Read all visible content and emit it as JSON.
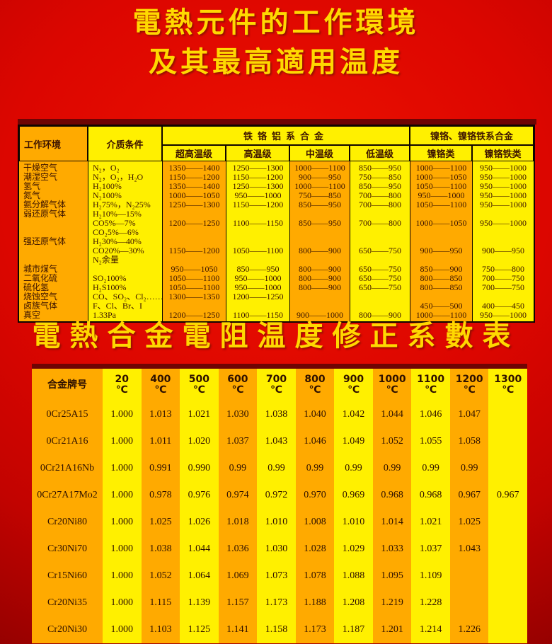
{
  "title": {
    "line1": "電熱元件的工作環境",
    "line2": "及其最高適用温度"
  },
  "title2": "電熱合金電阻温度修正系數表",
  "colors": {
    "background_red": "#d40600",
    "background_dark_red": "#7a0000",
    "stripe_orange": "#ffaa00",
    "stripe_yellow": "#fff000",
    "title_gold": "#ffd800",
    "divider_maroon": "#6f0404",
    "table_text": "#3a1200"
  },
  "table1": {
    "header": {
      "col_env": "工作环境",
      "col_medium": "介质条件",
      "group_fecral": "铁铬铝系合金",
      "group_nicr": "镍铬、镍铬铁系合金",
      "sub": [
        "超高温级",
        "高温级",
        "中温级",
        "低温级",
        "镍铬类",
        "镍铬铁类"
      ]
    },
    "lines": [
      [
        "干燥空气",
        "N₂，O₂",
        "1350——1400",
        "1250——1300",
        "1000——1100",
        "850——950",
        "1000——1100",
        "950——1000"
      ],
      [
        "潮湿空气",
        "N₂，O₂，H₂O",
        "1150——1200",
        "1150——1200",
        "900——950",
        "750——850",
        "1000——1050",
        "950——1000"
      ],
      [
        "氢气",
        "H₂100%",
        "1350——1400",
        "1250——1300",
        "1000——1100",
        "850——950",
        "1050——1100",
        "950——1000"
      ],
      [
        "氮气",
        "N₂100%",
        "1000——1050",
        "950——1000",
        "750——850",
        "700——800",
        "950——1000",
        "950——1000"
      ],
      [
        "氨分解气体",
        "H₂75%，N₂25%",
        "1250——1300",
        "1150——1200",
        "850——950",
        "700——800",
        "1050——1100",
        "950——1000"
      ],
      [
        "弱还原气体",
        "H₂10%—15%",
        "",
        "",
        "",
        "",
        "",
        ""
      ],
      [
        "",
        "CO5%—7%",
        "1200——1250",
        "1100——1150",
        "850——950",
        "700——800",
        "1000——1050",
        "950——1000"
      ],
      [
        "",
        "CO₂5%—6%",
        "",
        "",
        "",
        "",
        "",
        ""
      ],
      [
        "强还原气体",
        "H₂30%—40%",
        "",
        "",
        "",
        "",
        "",
        ""
      ],
      [
        "",
        "CO20%—30%",
        "1150——1200",
        "1050——1100",
        "800——900",
        "650——750",
        "900——950",
        "900——950"
      ],
      [
        "",
        "N₂余量",
        "",
        "",
        "",
        "",
        "",
        ""
      ],
      [
        "城市煤气",
        "",
        "950——1050",
        "850——950",
        "800——900",
        "650——750",
        "850——900",
        "750——800"
      ],
      [
        "二氧化硫",
        "SO₂100%",
        "1050——1100",
        "950——1000",
        "800——900",
        "650——750",
        "800——850",
        "700——750"
      ],
      [
        "硫化氢",
        "H₂S100%",
        "1050——1100",
        "950——1000",
        "800——900",
        "650——750",
        "800——850",
        "700——750"
      ],
      [
        "烧蚀空气",
        "CO、SO₂、Cl₂……",
        "1300——1350",
        "1200——1250",
        "",
        "",
        "",
        ""
      ],
      [
        "卤族气体",
        "F、Cl、Br、I",
        "",
        "",
        "",
        "",
        "450——500",
        "400——450"
      ],
      [
        "真空",
        "1.33Pa",
        "1200——1250",
        "1100——1150",
        "900——1000",
        "800——900",
        "1000——1100",
        "950——1000"
      ]
    ]
  },
  "table2": {
    "name_header": "合金牌号",
    "degree": "℃",
    "temp_headers": [
      "20",
      "400",
      "500",
      "600",
      "700",
      "800",
      "900",
      "1000",
      "1100",
      "1200",
      "1300"
    ],
    "rows": [
      {
        "name": "0Cr25A15",
        "values": [
          "1.000",
          "1.013",
          "1.021",
          "1.030",
          "1.038",
          "1.040",
          "1.042",
          "1.044",
          "1.046",
          "1.047",
          ""
        ]
      },
      {
        "name": "0Cr21A16",
        "values": [
          "1.000",
          "1.011",
          "1.020",
          "1.037",
          "1.043",
          "1.046",
          "1.049",
          "1.052",
          "1.055",
          "1.058",
          ""
        ]
      },
      {
        "name": "0Cr21A16Nb",
        "values": [
          "1.000",
          "0.991",
          "0.990",
          "0.99",
          "0.99",
          "0.99",
          "0.99",
          "0.99",
          "0.99",
          "0.99",
          ""
        ]
      },
      {
        "name": "0Cr27A17Mo2",
        "values": [
          "1.000",
          "0.978",
          "0.976",
          "0.974",
          "0.972",
          "0.970",
          "0.969",
          "0.968",
          "0.968",
          "0.967",
          "0.967"
        ]
      },
      {
        "name": "Cr20Ni80",
        "values": [
          "1.000",
          "1.025",
          "1.026",
          "1.018",
          "1.010",
          "1.008",
          "1.010",
          "1.014",
          "1.021",
          "1.025",
          ""
        ]
      },
      {
        "name": "Cr30Ni70",
        "values": [
          "1.000",
          "1.038",
          "1.044",
          "1.036",
          "1.030",
          "1.028",
          "1.029",
          "1.033",
          "1.037",
          "1.043",
          ""
        ]
      },
      {
        "name": "Cr15Ni60",
        "values": [
          "1.000",
          "1.052",
          "1.064",
          "1.069",
          "1.073",
          "1.078",
          "1.088",
          "1.095",
          "1.109",
          "",
          ""
        ]
      },
      {
        "name": "Cr20Ni35",
        "values": [
          "1.000",
          "1.115",
          "1.139",
          "1.157",
          "1.173",
          "1.188",
          "1.208",
          "1.219",
          "1.228",
          "",
          ""
        ]
      },
      {
        "name": "Cr20Ni30",
        "values": [
          "1.000",
          "1.103",
          "1.125",
          "1.141",
          "1.158",
          "1.173",
          "1.187",
          "1.201",
          "1.214",
          "1.226",
          ""
        ]
      }
    ]
  }
}
